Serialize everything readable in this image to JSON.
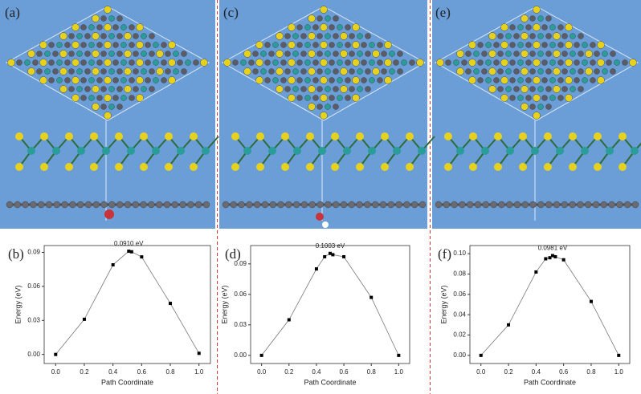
{
  "panels": [
    {
      "label": "(a)"
    },
    {
      "label": "(c)"
    },
    {
      "label": "(e)"
    }
  ],
  "chart_data": [
    {
      "type": "line",
      "label": "(b)",
      "annotation": "0.0910 eV",
      "xlabel": "Path Coordinate",
      "ylabel": "Energy (eV)",
      "color": "#000000",
      "x": [
        0,
        0.2,
        0.4,
        0.51,
        0.53,
        0.6,
        0.8,
        1.0
      ],
      "values": [
        0.0,
        0.031,
        0.079,
        0.091,
        0.0905,
        0.086,
        0.045,
        0.001
      ],
      "xlim": [
        -0.08,
        1.08
      ],
      "ylim": [
        -0.008,
        0.096
      ],
      "xticks": [
        {
          "value": 0,
          "label": "0.0"
        },
        {
          "value": 0.2,
          "label": "0.2"
        },
        {
          "value": 0.4,
          "label": "0.4"
        },
        {
          "value": 0.6,
          "label": "0.6"
        },
        {
          "value": 0.8,
          "label": "0.8"
        },
        {
          "value": 1,
          "label": "1.0"
        }
      ],
      "yticks": [
        {
          "value": 0,
          "label": "0.00"
        },
        {
          "value": 0.03,
          "label": "0.03"
        },
        {
          "value": 0.06,
          "label": "0.06"
        },
        {
          "value": 0.09,
          "label": "0.09"
        }
      ]
    },
    {
      "type": "line",
      "label": "(d)",
      "annotation": "0.1003 eV",
      "xlabel": "Path Coordinate",
      "ylabel": "Energy (eV)",
      "color": "#000000",
      "x": [
        0,
        0.2,
        0.4,
        0.46,
        0.5,
        0.52,
        0.6,
        0.8,
        1.0
      ],
      "values": [
        0.0,
        0.035,
        0.085,
        0.097,
        0.1003,
        0.099,
        0.097,
        0.057,
        0.0
      ],
      "xlim": [
        -0.08,
        1.08
      ],
      "ylim": [
        -0.008,
        0.108
      ],
      "xticks": [
        {
          "value": 0,
          "label": "0.0"
        },
        {
          "value": 0.2,
          "label": "0.2"
        },
        {
          "value": 0.4,
          "label": "0.4"
        },
        {
          "value": 0.6,
          "label": "0.6"
        },
        {
          "value": 0.8,
          "label": "0.8"
        },
        {
          "value": 1,
          "label": "1.0"
        }
      ],
      "yticks": [
        {
          "value": 0,
          "label": "0.00"
        },
        {
          "value": 0.03,
          "label": "0.03"
        },
        {
          "value": 0.06,
          "label": "0.06"
        },
        {
          "value": 0.09,
          "label": "0.09"
        }
      ]
    },
    {
      "type": "line",
      "label": "(f)",
      "annotation": "0.0981 eV",
      "xlabel": "Path Coordinate",
      "ylabel": "Energy (eV)",
      "color": "#000000",
      "x": [
        0,
        0.2,
        0.4,
        0.47,
        0.5,
        0.52,
        0.54,
        0.6,
        0.8,
        1.0
      ],
      "values": [
        0.0,
        0.03,
        0.082,
        0.095,
        0.096,
        0.0981,
        0.097,
        0.094,
        0.053,
        0.0
      ],
      "xlim": [
        -0.08,
        1.08
      ],
      "ylim": [
        -0.008,
        0.108
      ],
      "xticks": [
        {
          "value": 0,
          "label": "0.0"
        },
        {
          "value": 0.2,
          "label": "0.2"
        },
        {
          "value": 0.4,
          "label": "0.4"
        },
        {
          "value": 0.6,
          "label": "0.6"
        },
        {
          "value": 0.8,
          "label": "0.8"
        },
        {
          "value": 1,
          "label": "1.0"
        }
      ],
      "yticks": [
        {
          "value": 0,
          "label": "0.00"
        },
        {
          "value": 0.02,
          "label": "0.02"
        },
        {
          "value": 0.04,
          "label": "0.04"
        },
        {
          "value": 0.06,
          "label": "0.06"
        },
        {
          "value": 0.08,
          "label": "0.08"
        },
        {
          "value": 0.1,
          "label": "0.10"
        }
      ]
    }
  ]
}
